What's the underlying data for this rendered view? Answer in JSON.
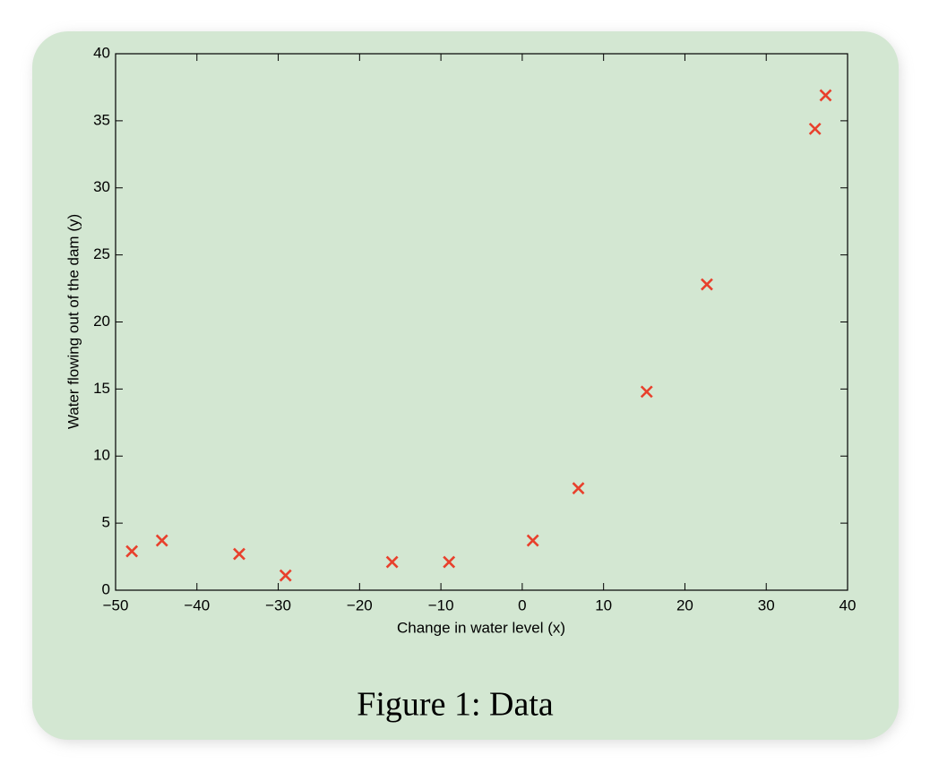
{
  "chart_data": {
    "type": "scatter",
    "caption": "Figure 1: Data",
    "xlabel": "Change in water level (x)",
    "ylabel": "Water flowing out of the dam (y)",
    "x": [
      -48.0,
      -44.3,
      -34.8,
      -29.1,
      -16.0,
      -9.0,
      1.3,
      6.9,
      15.3,
      22.7,
      36.0,
      37.3
    ],
    "values": [
      2.9,
      3.7,
      2.7,
      1.1,
      2.1,
      2.1,
      3.7,
      7.6,
      14.8,
      22.8,
      34.4,
      36.9
    ],
    "color": "#e8402c",
    "marker": "x",
    "xlim": [
      -50,
      40
    ],
    "xticks": [
      {
        "value": -50,
        "label": "−50"
      },
      {
        "value": -40,
        "label": "−40"
      },
      {
        "value": -30,
        "label": "−30"
      },
      {
        "value": -20,
        "label": "−20"
      },
      {
        "value": -10,
        "label": "−10"
      },
      0,
      10,
      20,
      30,
      40
    ],
    "ylim": [
      0,
      40
    ],
    "yticks": [
      0,
      5,
      10,
      15,
      20,
      25,
      30,
      35,
      40
    ],
    "grid": false
  }
}
